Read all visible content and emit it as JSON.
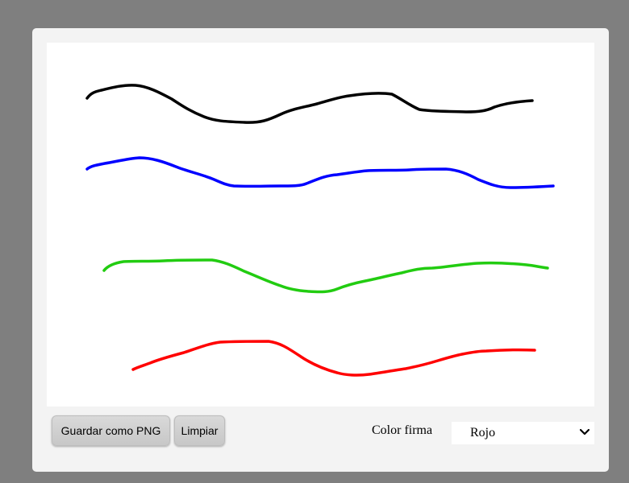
{
  "controls": {
    "save_label": "Guardar como PNG",
    "clear_label": "Limpiar",
    "color_label": "Color firma",
    "color_selected": "Rojo"
  },
  "strokes": [
    {
      "name": "black-stroke",
      "color": "#000000"
    },
    {
      "name": "blue-stroke",
      "color": "#0000ff"
    },
    {
      "name": "green-stroke",
      "color": "#22cc11"
    },
    {
      "name": "red-stroke",
      "color": "#ff0000"
    }
  ],
  "icons": {
    "select_arrow": "chevron-down-icon"
  }
}
